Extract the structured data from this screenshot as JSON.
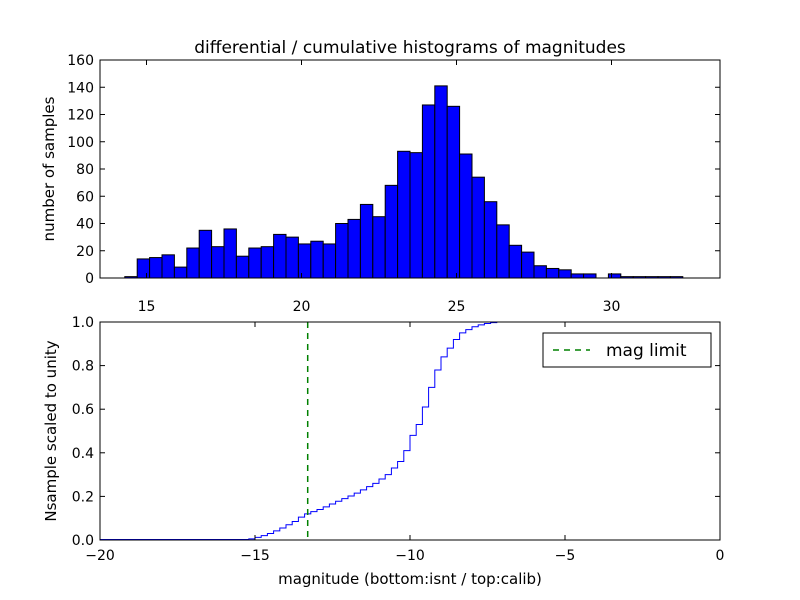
{
  "chart_data": [
    {
      "type": "bar",
      "title": "differential / cumulative histograms of magnitudes",
      "xlabel": "",
      "ylabel": "number of samples",
      "xlim": [
        13.5,
        33.5
      ],
      "ylim": [
        0,
        160
      ],
      "xticks": [
        15,
        20,
        25,
        30
      ],
      "yticks": [
        0,
        20,
        40,
        60,
        80,
        100,
        120,
        140,
        160
      ],
      "bin_start": 14.3,
      "bin_width": 0.4,
      "values": [
        1,
        14,
        15,
        17,
        8,
        22,
        35,
        23,
        36,
        16,
        22,
        23,
        32,
        30,
        25,
        27,
        25,
        40,
        43,
        54,
        45,
        68,
        93,
        92,
        127,
        141,
        126,
        91,
        74,
        56,
        39,
        24,
        19,
        9,
        7,
        6,
        3,
        3,
        0,
        3,
        1,
        1,
        1,
        1,
        1
      ],
      "bar_color": "#0000ff",
      "edge_color": "#000000"
    },
    {
      "type": "line",
      "xlabel": "magnitude (bottom:isnt / top:calib)",
      "ylabel": "Nsample scaled to unity",
      "xlim": [
        -20,
        0
      ],
      "ylim": [
        0,
        1
      ],
      "xticks": [
        -20,
        -15,
        -10,
        -5,
        0
      ],
      "yticks": [
        0.0,
        0.2,
        0.4,
        0.6,
        0.8,
        1.0
      ],
      "ytick_labels": [
        "0.0",
        "0.2",
        "0.4",
        "0.6",
        "0.8",
        "1.0"
      ],
      "xtick_labels": [
        "−20",
        "−15",
        "−10",
        "−5",
        "0"
      ],
      "series": [
        {
          "name": "cumulative",
          "color": "#0000ff",
          "step_start": -15.2,
          "step_width": 0.2,
          "values": [
            0.005,
            0.012,
            0.02,
            0.03,
            0.042,
            0.055,
            0.07,
            0.085,
            0.105,
            0.12,
            0.13,
            0.14,
            0.152,
            0.165,
            0.178,
            0.19,
            0.202,
            0.215,
            0.23,
            0.245,
            0.26,
            0.28,
            0.3,
            0.33,
            0.36,
            0.41,
            0.48,
            0.53,
            0.61,
            0.7,
            0.78,
            0.84,
            0.88,
            0.92,
            0.95,
            0.965,
            0.978,
            0.987,
            0.993,
            0.997,
            1.0,
            1.0,
            1.0,
            1.0,
            1.0,
            1.0,
            1.0,
            1.0,
            1.0,
            1.0,
            1.0,
            1.0,
            1.0,
            1.0,
            1.0,
            1.0,
            1.0,
            1.0,
            1.0,
            1.0,
            1.0,
            1.0,
            1.0,
            1.0,
            1.0,
            1.0,
            1.0,
            1.0,
            1.0,
            1.0,
            1.0,
            1.0,
            1.0,
            1.0,
            1.0,
            1.0
          ]
        }
      ],
      "mag_limit": {
        "x": -13.3,
        "color": "#008000",
        "label": "mag limit"
      },
      "legend_position": "top-right"
    }
  ]
}
